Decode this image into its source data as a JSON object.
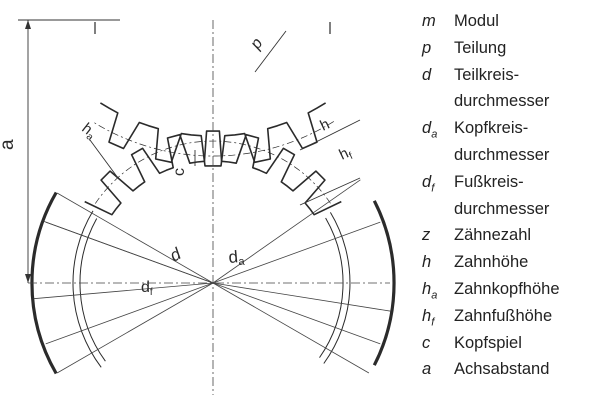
{
  "legend": [
    {
      "sym": "m",
      "sub": "",
      "text": "Modul"
    },
    {
      "sym": "p",
      "sub": "",
      "text": "Teilung"
    },
    {
      "sym": "d",
      "sub": "",
      "text": "Teilkreis-\ndurchmesser"
    },
    {
      "sym": "d",
      "sub": "a",
      "text": "Kopfkreis-\ndurchmesser"
    },
    {
      "sym": "d",
      "sub": "f",
      "text": "Fußkreis-\ndurchmesser"
    },
    {
      "sym": "z",
      "sub": "",
      "text": "Zähnezahl"
    },
    {
      "sym": "h",
      "sub": "",
      "text": "Zahnhöhe"
    },
    {
      "sym": "h",
      "sub": "a",
      "text": "Zahnkopfhöhe"
    },
    {
      "sym": "h",
      "sub": "f",
      "text": "Zahnfußhöhe"
    },
    {
      "sym": "c",
      "sub": "",
      "text": "Kopfspiel"
    },
    {
      "sym": "a",
      "sub": "",
      "text": "Achsabstand"
    }
  ],
  "labels": {
    "a": "a",
    "p": "p",
    "ha": "ha",
    "h": "h",
    "hf": "hf",
    "c": "c",
    "d": "d",
    "da": "da",
    "df": "df"
  }
}
